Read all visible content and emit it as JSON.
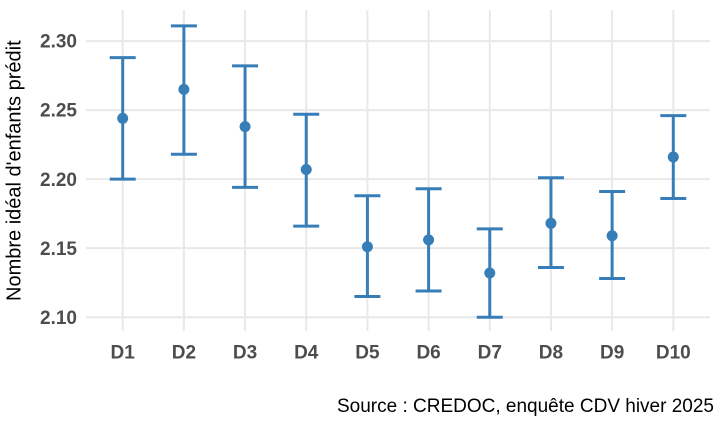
{
  "chart_data": {
    "type": "pointrange",
    "title": "",
    "xlabel": "",
    "ylabel": "Nombre idéal d'enfants prédit",
    "caption": "Source : CREDOC, enquête CDV hiver 2025",
    "categories": [
      "D1",
      "D2",
      "D3",
      "D4",
      "D5",
      "D6",
      "D7",
      "D8",
      "D9",
      "D10"
    ],
    "series": [
      {
        "name": "Nombre idéal d'enfants prédit",
        "values": [
          2.244,
          2.265,
          2.238,
          2.207,
          2.151,
          2.156,
          2.132,
          2.168,
          2.159,
          2.216
        ],
        "ci_lower": [
          2.2,
          2.218,
          2.194,
          2.166,
          2.115,
          2.119,
          2.1,
          2.136,
          2.128,
          2.186
        ],
        "ci_upper": [
          2.288,
          2.311,
          2.282,
          2.247,
          2.188,
          2.193,
          2.164,
          2.201,
          2.191,
          2.246
        ]
      }
    ],
    "y_ticks": [
      2.1,
      2.15,
      2.2,
      2.25,
      2.3
    ],
    "y_tick_labels": [
      "2.10",
      "2.15",
      "2.20",
      "2.25",
      "2.30"
    ],
    "ylim": [
      2.09,
      2.3225
    ],
    "grid": "major-both",
    "legend": "none",
    "colors": {
      "point": "#377eb8",
      "grid": "#e8e8e8",
      "axis_text": "#4d4d4d",
      "axis_title": "#000000",
      "caption_text": "#000000",
      "background": "#ffffff"
    }
  }
}
